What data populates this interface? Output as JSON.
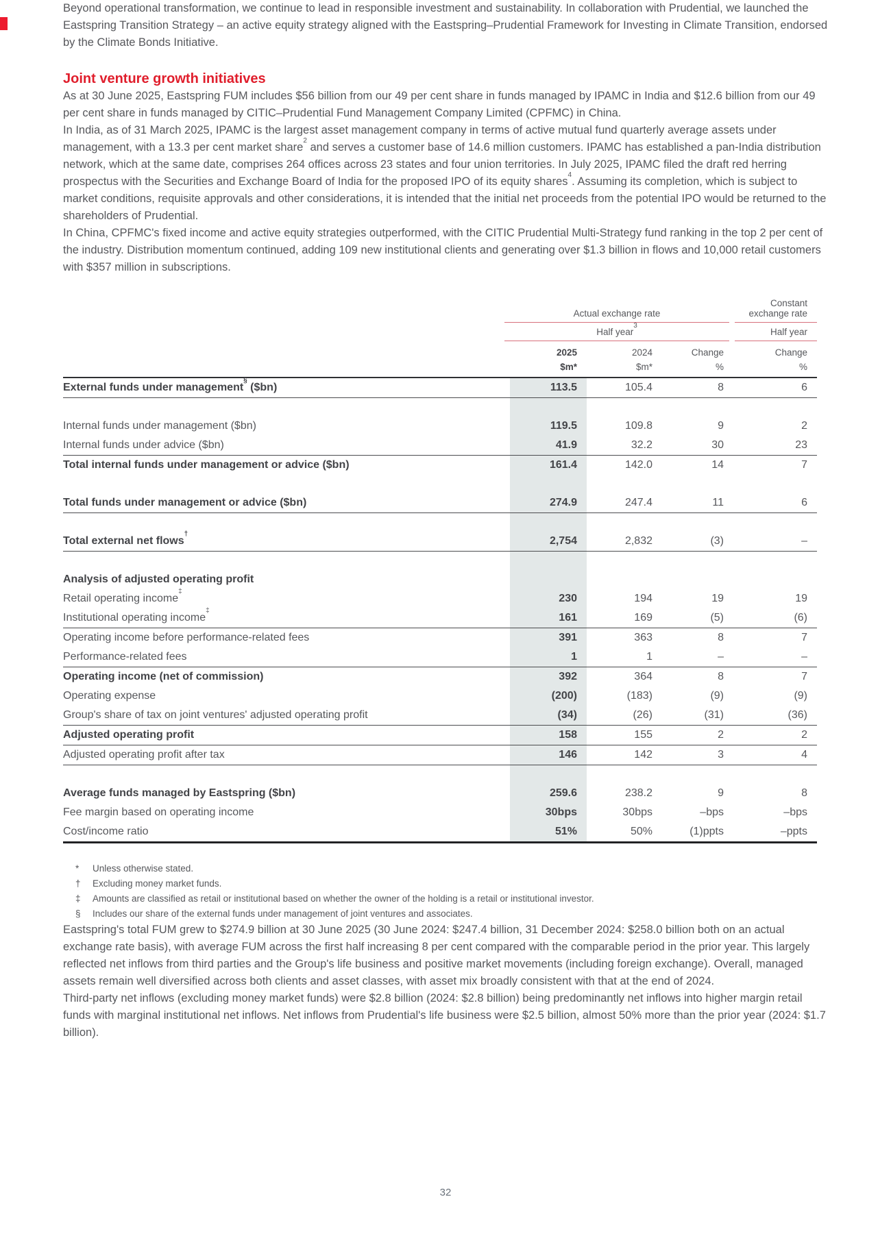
{
  "page": {
    "number": "32"
  },
  "intro": {
    "p1": "Beyond operational transformation, we continue to lead in responsible investment and sustainability. In collaboration with Prudential, we launched the Eastspring Transition Strategy – an active equity strategy aligned with the Eastspring–Prudential Framework for Investing in Climate Transition, endorsed by the Climate Bonds Initiative.",
    "heading": "Joint venture growth initiatives",
    "p2": "As at 30 June 2025, Eastspring FUM includes $56 billion from our 49 per cent share in funds managed by IPAMC in India and $12.6 billion from our 49 per cent share in funds managed by CITIC–Prudential Fund Management Company Limited (CPFMC) in China."
  },
  "india": {
    "seg1": "In India, as of 31 March 2025, IPAMC is the largest asset management company in terms of active mutual fund quarterly average assets under management, with a 13.3 per cent market share",
    "sup1": "2",
    "seg2": " and serves a customer base of 14.6 million customers. IPAMC has established a pan-India distribution network, which at the same date, comprises 264 offices across 23 states and four union territories. In July 2025, IPAMC filed the draft red herring prospectus with the Securities and Exchange Board of India for the proposed IPO of its equity shares",
    "sup2": "4",
    "seg3": ". Assuming its completion, which is subject to market conditions, requisite approvals and other considerations, it is intended that the initial net proceeds from the potential IPO would be returned to the shareholders of Prudential."
  },
  "china": {
    "p4": "In China, CPFMC's fixed income and active equity strategies outperformed, with the CITIC Prudential Multi-Strategy fund ranking in the top 2 per cent of the industry. Distribution momentum continued, adding 109 new institutional clients and generating over $1.3 billion in flows and 10,000 retail customers with $357 million in subscriptions."
  },
  "table": {
    "header": {
      "group1": "Actual exchange rate",
      "group2_line1": "Constant",
      "group2_line2": "exchange rate",
      "sub1": "Half year",
      "sub1_sup": "3",
      "sub2": "Half year",
      "year_2025": "2025",
      "year_2024": "2024",
      "change_aer": "Change",
      "change_cer": "Change",
      "unit_2025": "$m*",
      "unit_2024": "$m*",
      "unit_change_aer": "%",
      "unit_change_cer": "%"
    },
    "rows": [
      {
        "label": "External funds under management",
        "sup": "§",
        "suffix": " ($bn)",
        "bold": true,
        "values": [
          "113.5",
          "105.4",
          "8",
          "6"
        ],
        "rule_below": true
      },
      {
        "spacer": true
      },
      {
        "label": "Internal funds under management ($bn)",
        "values": [
          "119.5",
          "109.8",
          "9",
          "2"
        ]
      },
      {
        "label": "Internal funds under advice ($bn)",
        "values": [
          "41.9",
          "32.2",
          "30",
          "23"
        ],
        "rule_below": true
      },
      {
        "label": "Total internal funds under management or advice ($bn)",
        "bold": true,
        "values": [
          "161.4",
          "142.0",
          "14",
          "7"
        ]
      },
      {
        "spacer": true
      },
      {
        "label": "Total funds under management or advice ($bn)",
        "bold": true,
        "values": [
          "274.9",
          "247.4",
          "11",
          "6"
        ],
        "rule_below": true
      },
      {
        "spacer": true
      },
      {
        "label": "Total external net flows",
        "sup": "†",
        "bold": true,
        "values": [
          "2,754",
          "2,832",
          "(3)",
          "–"
        ],
        "rule_below": true
      },
      {
        "spacer": true
      },
      {
        "label": "Analysis of adjusted operating profit",
        "bold": true,
        "values": [
          "",
          "",
          "",
          ""
        ]
      },
      {
        "label": "Retail operating income",
        "sup": "‡",
        "values": [
          "230",
          "194",
          "19",
          "19"
        ]
      },
      {
        "label": "Institutional operating income",
        "sup": "‡",
        "values": [
          "161",
          "169",
          "(5)",
          "(6)"
        ],
        "rule_below": true
      },
      {
        "label": "Operating income before performance-related fees",
        "values": [
          "391",
          "363",
          "8",
          "7"
        ]
      },
      {
        "label": "Performance-related fees",
        "values": [
          "1",
          "1",
          "–",
          "–"
        ],
        "rule_below": true
      },
      {
        "label": "Operating income (net of commission)",
        "bold": true,
        "values": [
          "392",
          "364",
          "8",
          "7"
        ]
      },
      {
        "label": "Operating expense",
        "values": [
          "(200)",
          "(183)",
          "(9)",
          "(9)"
        ]
      },
      {
        "label": "Group's share of tax on joint ventures' adjusted operating profit",
        "values": [
          "(34)",
          "(26)",
          "(31)",
          "(36)"
        ],
        "rule_below": true
      },
      {
        "label": "Adjusted operating profit",
        "bold": true,
        "values": [
          "158",
          "155",
          "2",
          "2"
        ],
        "rule_below": true
      },
      {
        "label": "Adjusted operating profit after tax",
        "values": [
          "146",
          "142",
          "3",
          "4"
        ],
        "rule_below": true
      },
      {
        "spacer": true
      },
      {
        "label": "Average funds managed by Eastspring ($bn)",
        "bold": true,
        "values": [
          "259.6",
          "238.2",
          "9",
          "8"
        ]
      },
      {
        "label": "Fee margin based on operating income",
        "values": [
          "30bps",
          "30bps",
          "–bps",
          "–bps"
        ]
      },
      {
        "label": "Cost/income ratio",
        "values": [
          "51%",
          "50%",
          "(1)ppts",
          "–ppts"
        ]
      }
    ]
  },
  "footnotes": [
    {
      "marker": "*",
      "text": "Unless otherwise stated."
    },
    {
      "marker": "†",
      "text": "Excluding money market funds."
    },
    {
      "marker": "‡",
      "text": "Amounts are classified as retail or institutional based on whether the owner of the holding is a retail or institutional investor."
    },
    {
      "marker": "§",
      "text": "Includes our share of the external funds under management of joint ventures and associates."
    }
  ],
  "closing": {
    "p5": "Eastspring's total FUM grew to $274.9 billion at 30 June 2025 (30 June 2024: $247.4 billion, 31 December 2024: $258.0 billion both on an actual exchange rate basis), with average FUM across the first half increasing 8 per cent compared with the comparable period in the prior year. This largely reflected net inflows from third parties and the Group's life business and positive market movements (including foreign exchange). Overall, managed assets remain well diversified across both clients and asset classes, with asset mix broadly consistent with that at the end of 2024.",
    "p6": "Third-party net inflows (excluding money market funds) were $2.8 billion (2024: $2.8 billion) being predominantly net inflows into higher margin retail funds with marginal institutional net inflows. Net inflows from Prudential's life business were $2.5 billion, almost 50% more than the prior year (2024: $1.7 billion)."
  }
}
